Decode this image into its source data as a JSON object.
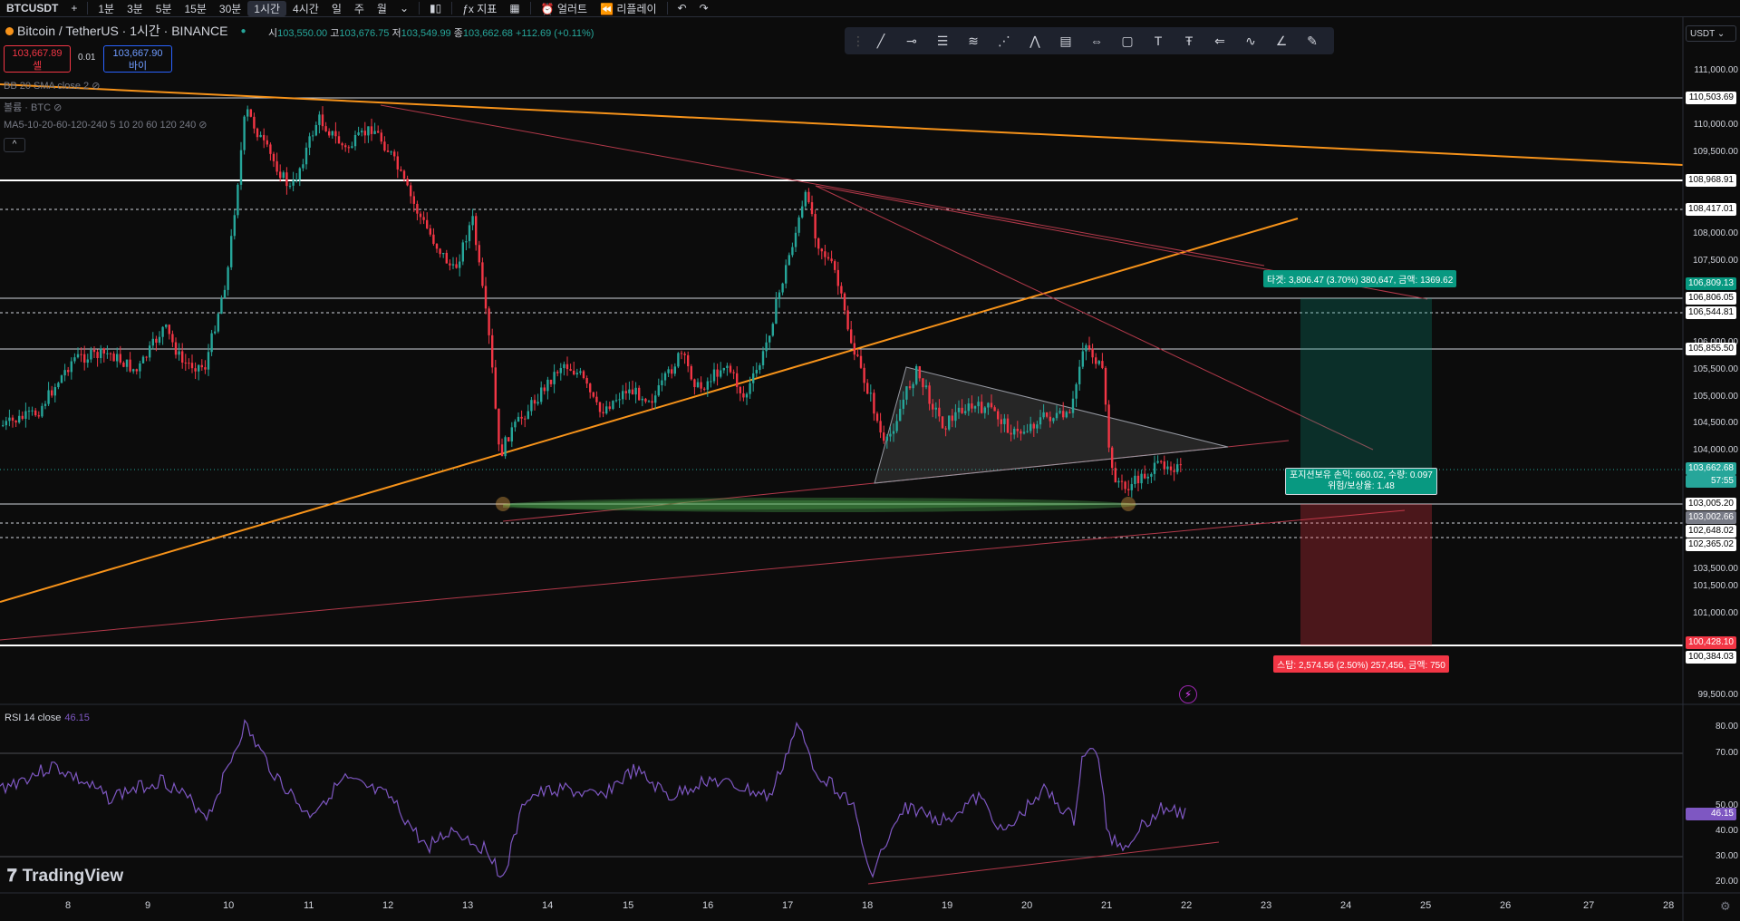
{
  "topbar": {
    "symbol": "BTCUSDT",
    "add": "+",
    "intervals": [
      "1분",
      "3분",
      "5분",
      "15분",
      "30분",
      "1시간",
      "4시간",
      "일",
      "주",
      "월"
    ],
    "active_interval": "1시간",
    "indicators_label": "지표",
    "alert_label": "얼러트",
    "replay_label": "리플레이"
  },
  "legend": {
    "title": "Bitcoin / TetherUS · 1시간 · BINANCE",
    "open_k": "시",
    "open": "103,550.00",
    "high_k": "고",
    "high": "103,676.75",
    "low_k": "저",
    "low": "103,549.99",
    "close_k": "종",
    "close": "103,662.68",
    "change": "+112.69 (+0.11%)",
    "sell_price": "103,667.89",
    "sell_label": "셀",
    "spread": "0.01",
    "buy_price": "103,667.90",
    "buy_label": "바이",
    "ind1": "BB 20 SMA close 2",
    "ind2": "볼륨 · BTC",
    "ind3": "MA5-10-20-60-120-240 5 10 20 60 120 240",
    "collapse": "^"
  },
  "price_axis": {
    "currency": "USDT",
    "ticks": [
      "111,000.00",
      "110,000.00",
      "109,500.00",
      "108,000.00",
      "107,500.00",
      "106,000.00",
      "105,500.00",
      "105,000.00",
      "104,500.00",
      "104,000.00",
      "103,500.00",
      "101,500.00",
      "101,000.00",
      "99,500.00"
    ],
    "tags": [
      {
        "text": "110,503.69",
        "style": "white"
      },
      {
        "text": "108,968.91",
        "style": "white"
      },
      {
        "text": "108,417.01",
        "style": "white"
      },
      {
        "text": "106,809.13",
        "style": "green"
      },
      {
        "text": "106,806.05",
        "style": "white"
      },
      {
        "text": "106,544.81",
        "style": "white"
      },
      {
        "text": "105,855.50",
        "style": "white"
      },
      {
        "text": "103,662.68",
        "style": "teal"
      },
      {
        "text": "57:55",
        "style": "teal"
      },
      {
        "text": "103,005.20",
        "style": "white"
      },
      {
        "text": "103,002.66",
        "style": "grey"
      },
      {
        "text": "102,648.02",
        "style": "white"
      },
      {
        "text": "102,365.02",
        "style": "white"
      },
      {
        "text": "100,428.10",
        "style": "red"
      },
      {
        "text": "100,384.03",
        "style": "white"
      }
    ]
  },
  "position": {
    "target": "타겟: 3,806.47 (3.70%) 380,647, 금액: 1369.62",
    "stop": "스탑: 2,574.56 (2.50%) 257,456, 금액: 750",
    "info_line1": "포지션보유 손익: 660.02, 수량: 0.097",
    "info_line2": "위험/보상율: 1.48"
  },
  "rsi": {
    "label": "RSI 14 close",
    "value": "46.15",
    "ticks": [
      "80.00",
      "70.00",
      "50.00",
      "40.00",
      "30.00",
      "20.00"
    ],
    "tag": "46.15"
  },
  "x_axis": {
    "labels": [
      "8",
      "9",
      "10",
      "11",
      "12",
      "13",
      "14",
      "15",
      "16",
      "17",
      "18",
      "19",
      "20",
      "21",
      "22",
      "23",
      "24",
      "25",
      "26",
      "27",
      "28"
    ]
  },
  "brand": "TradingView",
  "colors": {
    "up": "#26a69a",
    "down": "#f23645",
    "orange": "#f7931a",
    "rsi": "#7e57c2"
  }
}
